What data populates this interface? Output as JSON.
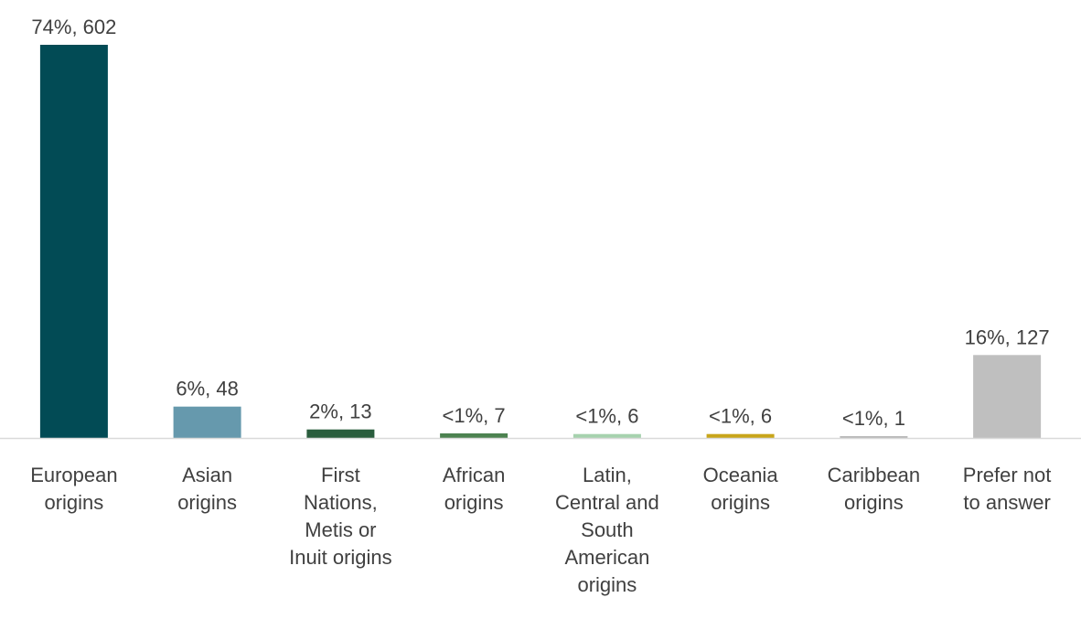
{
  "chart_data": {
    "type": "bar",
    "categories": [
      [
        "European",
        "origins"
      ],
      [
        "Asian",
        "origins"
      ],
      [
        "First",
        "Nations,",
        "Metis or",
        "Inuit origins"
      ],
      [
        "African",
        "origins"
      ],
      [
        "Latin,",
        "Central and",
        "South",
        "American",
        "origins"
      ],
      [
        "Oceania",
        "origins"
      ],
      [
        "Caribbean",
        "origins"
      ],
      [
        "Prefer not",
        "to answer"
      ]
    ],
    "values": [
      602,
      48,
      13,
      7,
      6,
      6,
      1,
      127
    ],
    "data_labels": [
      "74%, 602",
      "6%, 48",
      "2%, 13",
      "<1%, 7",
      "<1%, 6",
      "<1%, 6",
      "<1%, 1",
      "16%, 127"
    ],
    "colors": [
      "#024B55",
      "#6699AD",
      "#2A5D3D",
      "#4C8250",
      "#A6D2AE",
      "#C8A51A",
      "#B8B8B8",
      "#BFBFBF"
    ],
    "title": "",
    "xlabel": "",
    "ylabel": "",
    "ylim": [
      0,
      602
    ],
    "grid": false,
    "legend": "none"
  }
}
